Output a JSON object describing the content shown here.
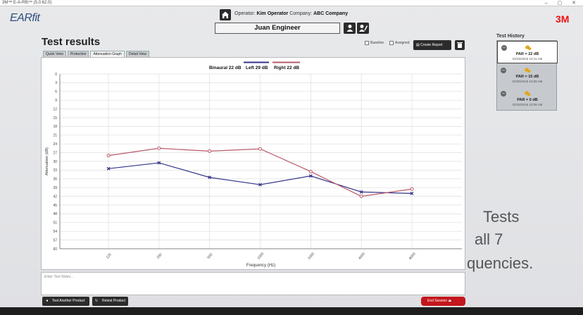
{
  "window": {
    "title": "3M™ E-A-Rfit™ (5.0.62.0)"
  },
  "brand": {
    "logo": "EARfit",
    "company_logo": "3M"
  },
  "header": {
    "operator_label": "Operator:",
    "operator_name": "Kim Operator",
    "company_label": "Company:",
    "company_name": "ABC Company",
    "patient_name": "Juan Engineer"
  },
  "page": {
    "title": "Test results"
  },
  "tabs": [
    {
      "label": "Quick View"
    },
    {
      "label": "Protection"
    },
    {
      "label": "Attenuation Graph",
      "active": true
    },
    {
      "label": "Detail View"
    }
  ],
  "toolbar": {
    "baseline_label": "Baseline",
    "assigned_label": "Assigned",
    "create_report_label": "Create Report"
  },
  "legend": {
    "binaural": "Binaural 22 dB",
    "left": "Left 29 dB",
    "right": "Right 22 dB"
  },
  "chart_data": {
    "type": "line",
    "xlabel": "Frequency (Hz)",
    "ylabel": "Attenuation (dB)",
    "categories": [
      "125",
      "250",
      "500",
      "1000",
      "2000",
      "4000",
      "8000"
    ],
    "y_ticks": [
      0,
      3,
      6,
      9,
      12,
      15,
      18,
      21,
      24,
      27,
      30,
      33,
      36,
      39,
      42,
      45,
      48,
      51,
      54,
      57,
      60
    ],
    "ylim": [
      0,
      60
    ],
    "y_inverted": true,
    "grid": true,
    "series": [
      {
        "name": "Left 29 dB",
        "color": "#33338a",
        "marker": "x",
        "values": [
          32.5,
          30.5,
          35.5,
          38,
          35,
          40.5,
          41
        ]
      },
      {
        "name": "Right 22 dB",
        "color": "#b85a68",
        "marker": "o",
        "values": [
          28,
          25.5,
          26.5,
          25.7,
          33.5,
          42,
          39.5
        ]
      }
    ]
  },
  "notes": {
    "placeholder": "Enter Test Notes..."
  },
  "actions": {
    "test_another": "Test Another Product",
    "retest": "Retest Product",
    "end_session": "End Session"
  },
  "history": {
    "label": "Test History",
    "items": [
      {
        "par": "PAR = 22 dB",
        "date": "02/25/2015 10:11 AM",
        "selected": true
      },
      {
        "par": "PAR = 15 dB",
        "date": "02/25/2015 10:09 AM",
        "selected": false
      },
      {
        "par": "PAR = 0 dB",
        "date": "02/25/2015 10:08 AM",
        "selected": false
      }
    ]
  },
  "promo": {
    "line1": "Tests",
    "line2": "all 7",
    "line3": "quencies."
  },
  "colors": {
    "accent_red": "#c4161c",
    "brand_blue": "#2d4e80",
    "left_line": "#33338a",
    "right_line": "#b85a68"
  }
}
